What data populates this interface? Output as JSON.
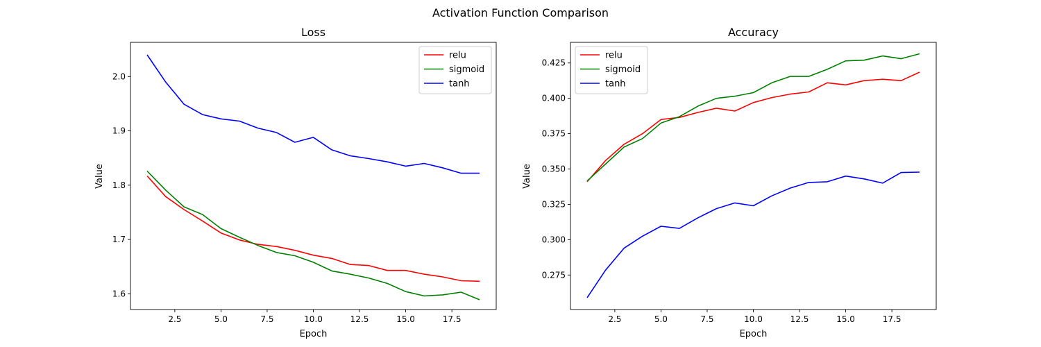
{
  "figure": {
    "suptitle": "Activation Function Comparison"
  },
  "chart_data": [
    {
      "type": "line",
      "title": "Loss",
      "xlabel": "Epoch",
      "ylabel": "Value",
      "xlim": [
        0.1,
        19.9
      ],
      "ylim": [
        1.571,
        2.063
      ],
      "xticks": [
        2.5,
        5.0,
        7.5,
        10.0,
        12.5,
        15.0,
        17.5
      ],
      "yticks": [
        1.6,
        1.7,
        1.8,
        1.9,
        2.0
      ],
      "xtick_labels": [
        "2.5",
        "5.0",
        "7.5",
        "10.0",
        "12.5",
        "15.0",
        "17.5"
      ],
      "ytick_labels": [
        "1.6",
        "1.7",
        "1.8",
        "1.9",
        "2.0"
      ],
      "legend_position": "top-right",
      "x": [
        1,
        2,
        3,
        4,
        5,
        6,
        7,
        8,
        9,
        10,
        11,
        12,
        13,
        14,
        15,
        16,
        17,
        18,
        19
      ],
      "series": [
        {
          "name": "relu",
          "color": "#ff0000",
          "values": [
            1.817,
            1.779,
            1.755,
            1.734,
            1.712,
            1.699,
            1.691,
            1.687,
            1.68,
            1.671,
            1.665,
            1.654,
            1.652,
            1.643,
            1.643,
            1.636,
            1.631,
            1.624,
            1.623
          ]
        },
        {
          "name": "sigmoid",
          "color": "#008000",
          "values": [
            1.826,
            1.791,
            1.76,
            1.746,
            1.72,
            1.704,
            1.689,
            1.676,
            1.67,
            1.658,
            1.642,
            1.636,
            1.629,
            1.619,
            1.604,
            1.596,
            1.598,
            1.603,
            1.589
          ]
        },
        {
          "name": "tanh",
          "color": "#0000ff",
          "values": [
            2.04,
            1.99,
            1.949,
            1.93,
            1.922,
            1.918,
            1.905,
            1.897,
            1.879,
            1.888,
            1.865,
            1.854,
            1.849,
            1.843,
            1.835,
            1.84,
            1.832,
            1.822,
            1.822
          ]
        }
      ]
    },
    {
      "type": "line",
      "title": "Accuracy",
      "xlabel": "Epoch",
      "ylabel": "Value",
      "xlim": [
        0.1,
        19.9
      ],
      "ylim": [
        0.2506,
        0.4396
      ],
      "xticks": [
        2.5,
        5.0,
        7.5,
        10.0,
        12.5,
        15.0,
        17.5
      ],
      "yticks": [
        0.275,
        0.3,
        0.325,
        0.35,
        0.375,
        0.4,
        0.425
      ],
      "xtick_labels": [
        "2.5",
        "5.0",
        "7.5",
        "10.0",
        "12.5",
        "15.0",
        "17.5"
      ],
      "ytick_labels": [
        "0.275",
        "0.300",
        "0.325",
        "0.350",
        "0.375",
        "0.400",
        "0.425"
      ],
      "legend_position": "top-left",
      "x": [
        1,
        2,
        3,
        4,
        5,
        6,
        7,
        8,
        9,
        10,
        11,
        12,
        13,
        14,
        15,
        16,
        17,
        18,
        19
      ],
      "series": [
        {
          "name": "relu",
          "color": "#ff0000",
          "values": [
            0.341,
            0.356,
            0.3675,
            0.375,
            0.385,
            0.3865,
            0.39,
            0.393,
            0.391,
            0.397,
            0.4005,
            0.403,
            0.4045,
            0.411,
            0.4095,
            0.4125,
            0.4135,
            0.4125,
            0.4185
          ]
        },
        {
          "name": "sigmoid",
          "color": "#008000",
          "values": [
            0.3415,
            0.3535,
            0.3655,
            0.3715,
            0.3825,
            0.387,
            0.3945,
            0.4,
            0.4015,
            0.404,
            0.411,
            0.4155,
            0.4155,
            0.4205,
            0.4265,
            0.427,
            0.43,
            0.428,
            0.4315
          ]
        },
        {
          "name": "tanh",
          "color": "#0000ff",
          "values": [
            0.259,
            0.2785,
            0.294,
            0.3025,
            0.3095,
            0.308,
            0.3155,
            0.322,
            0.326,
            0.324,
            0.331,
            0.3365,
            0.3405,
            0.341,
            0.345,
            0.343,
            0.34,
            0.3475,
            0.3478
          ]
        }
      ]
    }
  ]
}
